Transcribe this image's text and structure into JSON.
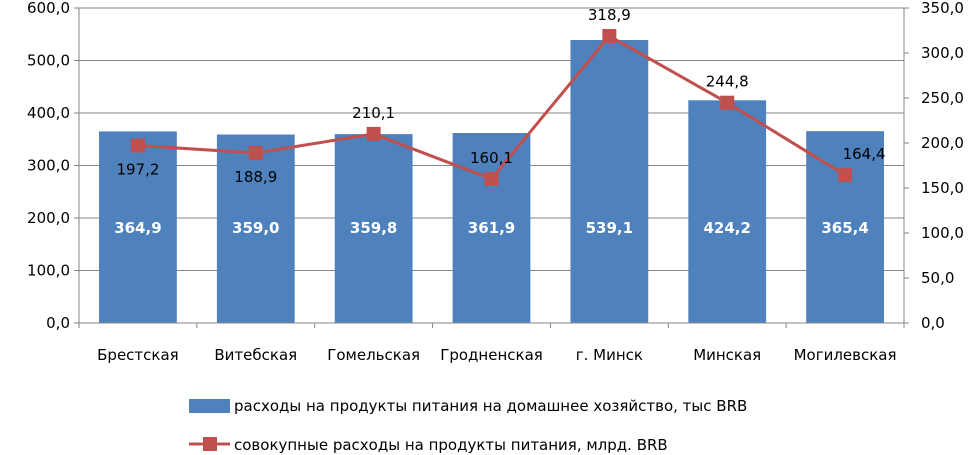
{
  "chart_data": {
    "type": "bar+line",
    "categories": [
      "Брестская",
      "Витебская",
      "Гомельская",
      "Гродненская",
      "г. Минск",
      "Минская",
      "Могилевская"
    ],
    "series": [
      {
        "name": "расходы на продукты питания на домашнее хозяйство, тыс BRB",
        "type": "bar",
        "axis": "left",
        "color": "#4F81BD",
        "values": [
          364.9,
          359.0,
          359.8,
          361.9,
          539.1,
          424.2,
          365.4
        ],
        "labels": [
          "364,9",
          "359,0",
          "359,8",
          "361,9",
          "539,1",
          "424,2",
          "365,4"
        ]
      },
      {
        "name": "совокупные расходы на продукты питания, млрд. BRB",
        "type": "line",
        "axis": "right",
        "color": "#C0504D",
        "values": [
          197.2,
          188.9,
          210.1,
          160.1,
          318.9,
          244.8,
          164.4
        ],
        "labels": [
          "197,2",
          "188,9",
          "210,1",
          "160,1",
          "318,9",
          "244,8",
          "164,4"
        ]
      }
    ],
    "y_left": {
      "range": [
        0,
        600
      ],
      "ticks": [
        0,
        100,
        200,
        300,
        400,
        500,
        600
      ],
      "tick_labels": [
        "0,0",
        "100,0",
        "200,0",
        "300,0",
        "400,0",
        "500,0",
        "600,0"
      ]
    },
    "y_right": {
      "range": [
        0,
        350
      ],
      "ticks": [
        0,
        50,
        100,
        150,
        200,
        250,
        300,
        350
      ],
      "tick_labels": [
        "0,0",
        "50,0",
        "100,0",
        "150,0",
        "200,0",
        "250,0",
        "300,0",
        "350,0"
      ]
    },
    "grid": true,
    "legend_position": "bottom"
  }
}
